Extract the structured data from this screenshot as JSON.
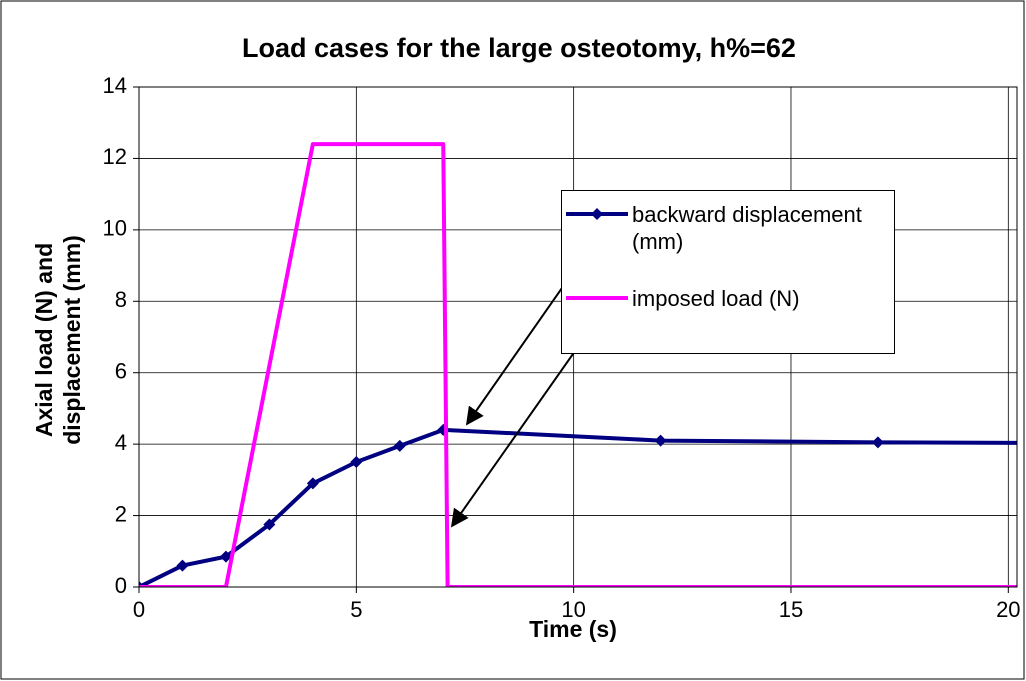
{
  "chart_data": {
    "type": "line",
    "title": "Load cases for the large osteotomy, h%=62",
    "x_label": "Time (s)",
    "y_label": [
      "Axial load (N)  and",
      "displacement (mm)"
    ],
    "xlim": [
      0,
      20.2
    ],
    "xticks": [
      0,
      5,
      10,
      15,
      20
    ],
    "ylim": [
      0,
      14
    ],
    "yticks": [
      0,
      2,
      4,
      6,
      8,
      10,
      12,
      14
    ],
    "grid": true,
    "series": [
      {
        "name": "backward displacement (mm)",
        "color": "#000080",
        "markers": true,
        "x": [
          0,
          1,
          2,
          3,
          4,
          5,
          6,
          7,
          12,
          17,
          22
        ],
        "values": [
          0,
          0.6,
          0.85,
          1.75,
          2.9,
          3.5,
          3.95,
          4.4,
          4.1,
          4.05,
          4.03
        ]
      },
      {
        "name": "imposed load (N)",
        "color": "#ff00ff",
        "markers": false,
        "x": [
          0,
          2,
          4,
          7,
          7.1,
          22
        ],
        "values": [
          0,
          0,
          12.4,
          12.4,
          0,
          0
        ]
      }
    ]
  }
}
